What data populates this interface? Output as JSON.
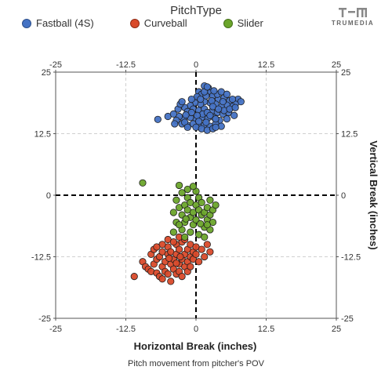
{
  "legend": {
    "title": "PitchType",
    "items": [
      {
        "label": "Fastball (4S)",
        "color": "#4472c4"
      },
      {
        "label": "Curveball",
        "color": "#d94a2a"
      },
      {
        "label": "Slider",
        "color": "#6ba52b"
      }
    ]
  },
  "brand": {
    "name": "TRUMEDIA",
    "icon": "trumedia-logo-icon"
  },
  "caption": "Pitch movement from pitcher's POV",
  "chart_data": {
    "type": "scatter",
    "xlabel": "Horizontal Break (inches)",
    "ylabel": "Vertical Break (inches)",
    "xlim": [
      -25,
      25
    ],
    "ylim": [
      -25,
      25
    ],
    "xticks": [
      "-25",
      "-12.5",
      "0",
      "12.5",
      "25"
    ],
    "yticks": [
      "25",
      "12.5",
      "0",
      "-12.5",
      "-25"
    ],
    "grid": true,
    "zero_lines": "dashed",
    "legend_placement": "top",
    "series": [
      {
        "name": "Fastball (4S)",
        "color": "#4472c4",
        "points": [
          [
            1.5,
            22.2
          ],
          [
            2.2,
            21.8
          ],
          [
            0.5,
            21.0
          ],
          [
            1.0,
            20.5
          ],
          [
            2.5,
            20.8
          ],
          [
            3.0,
            20.2
          ],
          [
            4.0,
            19.5
          ],
          [
            5.0,
            19.8
          ],
          [
            6.0,
            19.2
          ],
          [
            7.5,
            19.5
          ],
          [
            8.0,
            19.0
          ],
          [
            7.0,
            18.5
          ],
          [
            6.5,
            18.0
          ],
          [
            5.5,
            18.3
          ],
          [
            4.5,
            18.0
          ],
          [
            3.5,
            18.5
          ],
          [
            2.5,
            18.8
          ],
          [
            1.5,
            19.0
          ],
          [
            0.8,
            18.5
          ],
          [
            -0.2,
            18.8
          ],
          [
            -1.0,
            18.2
          ],
          [
            -2.0,
            17.8
          ],
          [
            -1.5,
            17.0
          ],
          [
            -0.5,
            17.5
          ],
          [
            0.5,
            17.2
          ],
          [
            1.5,
            17.5
          ],
          [
            2.8,
            17.0
          ],
          [
            3.8,
            16.8
          ],
          [
            4.8,
            16.5
          ],
          [
            5.8,
            16.8
          ],
          [
            6.8,
            16.2
          ],
          [
            5.5,
            15.5
          ],
          [
            4.2,
            15.2
          ],
          [
            3.2,
            15.8
          ],
          [
            2.0,
            15.5
          ],
          [
            1.0,
            15.8
          ],
          [
            0.0,
            15.5
          ],
          [
            -1.0,
            15.8
          ],
          [
            -2.2,
            15.5
          ],
          [
            -3.0,
            16.0
          ],
          [
            -3.5,
            15.2
          ],
          [
            -2.5,
            14.5
          ],
          [
            -1.5,
            14.2
          ],
          [
            -0.5,
            14.5
          ],
          [
            0.5,
            14.0
          ],
          [
            1.5,
            14.3
          ],
          [
            2.5,
            14.0
          ],
          [
            3.5,
            14.5
          ],
          [
            4.5,
            14.0
          ],
          [
            0.0,
            13.8
          ],
          [
            1.0,
            13.5
          ],
          [
            2.0,
            13.2
          ],
          [
            3.0,
            13.5
          ],
          [
            -3.2,
            17.5
          ],
          [
            -2.8,
            18.5
          ],
          [
            0.2,
            20.0
          ],
          [
            1.8,
            20.2
          ],
          [
            3.8,
            20.5
          ],
          [
            4.5,
            21.0
          ],
          [
            2.8,
            19.2
          ],
          [
            1.2,
            16.5
          ],
          [
            0.2,
            16.2
          ],
          [
            -0.8,
            16.8
          ],
          [
            5.0,
            17.2
          ],
          [
            6.0,
            17.5
          ],
          [
            7.0,
            17.8
          ],
          [
            3.0,
            18.0
          ],
          [
            2.0,
            16.8
          ],
          [
            -1.8,
            16.3
          ],
          [
            -6.8,
            15.4
          ],
          [
            -5.0,
            16.0
          ],
          [
            -4.0,
            16.5
          ],
          [
            -3.8,
            14.5
          ],
          [
            -2.0,
            14.8
          ],
          [
            1.8,
            14.8
          ],
          [
            3.5,
            15.5
          ],
          [
            2.5,
            16.2
          ],
          [
            4.0,
            17.5
          ],
          [
            0.8,
            19.5
          ],
          [
            -0.8,
            19.5
          ],
          [
            1.5,
            21.0
          ],
          [
            3.2,
            21.2
          ],
          [
            2.0,
            22.0
          ],
          [
            0.5,
            15.0
          ],
          [
            -1.5,
            13.8
          ],
          [
            4.8,
            19.0
          ],
          [
            5.5,
            20.5
          ],
          [
            6.5,
            19.5
          ],
          [
            -2.5,
            19.0
          ],
          [
            3.5,
            13.8
          ]
        ]
      },
      {
        "name": "Curveball",
        "color": "#d94a2a",
        "points": [
          [
            -11.0,
            -16.5
          ],
          [
            -9.5,
            -13.5
          ],
          [
            -9.0,
            -14.5
          ],
          [
            -8.5,
            -15.0
          ],
          [
            -8.0,
            -15.5
          ],
          [
            -8.0,
            -12.0
          ],
          [
            -7.5,
            -14.0
          ],
          [
            -7.5,
            -11.0
          ],
          [
            -7.0,
            -15.8
          ],
          [
            -7.0,
            -13.0
          ],
          [
            -6.5,
            -12.5
          ],
          [
            -6.5,
            -16.5
          ],
          [
            -6.0,
            -14.5
          ],
          [
            -6.0,
            -11.5
          ],
          [
            -6.0,
            -17.0
          ],
          [
            -5.5,
            -13.5
          ],
          [
            -5.5,
            -15.5
          ],
          [
            -5.0,
            -12.0
          ],
          [
            -5.0,
            -16.0
          ],
          [
            -5.0,
            -10.5
          ],
          [
            -4.5,
            -14.0
          ],
          [
            -4.5,
            -11.5
          ],
          [
            -4.5,
            -17.5
          ],
          [
            -4.0,
            -13.0
          ],
          [
            -4.0,
            -15.0
          ],
          [
            -3.5,
            -12.0
          ],
          [
            -3.5,
            -16.0
          ],
          [
            -3.5,
            -10.0
          ],
          [
            -3.0,
            -14.0
          ],
          [
            -3.0,
            -11.0
          ],
          [
            -3.0,
            -15.5
          ],
          [
            -2.5,
            -13.0
          ],
          [
            -2.5,
            -16.5
          ],
          [
            -2.5,
            -9.5
          ],
          [
            -2.0,
            -12.0
          ],
          [
            -2.0,
            -14.5
          ],
          [
            -1.5,
            -11.0
          ],
          [
            -1.5,
            -13.5
          ],
          [
            -1.5,
            -15.5
          ],
          [
            -1.0,
            -12.5
          ],
          [
            -1.0,
            -10.0
          ],
          [
            -1.0,
            -14.5
          ],
          [
            -0.5,
            -11.5
          ],
          [
            -0.5,
            -13.0
          ],
          [
            0.0,
            -12.0
          ],
          [
            0.0,
            -10.5
          ],
          [
            0.5,
            -13.5
          ],
          [
            1.0,
            -11.0
          ],
          [
            1.5,
            -12.5
          ],
          [
            2.0,
            -10.0
          ],
          [
            2.5,
            -11.5
          ],
          [
            -6.0,
            -10.0
          ],
          [
            -5.0,
            -9.0
          ],
          [
            -4.0,
            -9.5
          ],
          [
            -3.0,
            -8.5
          ],
          [
            -2.0,
            -9.0
          ],
          [
            -7.0,
            -10.5
          ],
          [
            -3.5,
            -13.8
          ],
          [
            -4.8,
            -12.8
          ],
          [
            -2.8,
            -12.5
          ]
        ]
      },
      {
        "name": "Slider",
        "color": "#6ba52b",
        "points": [
          [
            -9.5,
            2.5
          ],
          [
            -3.0,
            2.0
          ],
          [
            -2.5,
            0.5
          ],
          [
            -3.5,
            -1.0
          ],
          [
            -3.0,
            -2.5
          ],
          [
            -2.5,
            -4.0
          ],
          [
            -2.0,
            -2.0
          ],
          [
            -2.0,
            -5.5
          ],
          [
            -1.5,
            -3.0
          ],
          [
            -1.5,
            -0.5
          ],
          [
            -1.0,
            -4.5
          ],
          [
            -1.0,
            -1.5
          ],
          [
            -0.5,
            -3.5
          ],
          [
            -0.5,
            -6.0
          ],
          [
            0.0,
            -2.0
          ],
          [
            0.0,
            -5.0
          ],
          [
            0.5,
            -3.0
          ],
          [
            0.5,
            -0.5
          ],
          [
            1.0,
            -4.0
          ],
          [
            1.0,
            -1.5
          ],
          [
            1.5,
            -3.5
          ],
          [
            1.5,
            -6.5
          ],
          [
            2.0,
            -2.5
          ],
          [
            2.0,
            -5.0
          ],
          [
            2.5,
            -4.0
          ],
          [
            2.5,
            -1.0
          ],
          [
            3.0,
            -3.0
          ],
          [
            3.0,
            -5.5
          ],
          [
            -2.5,
            -7.0
          ],
          [
            -1.0,
            -7.5
          ],
          [
            0.5,
            -8.0
          ],
          [
            -2.0,
            -8.5
          ],
          [
            -3.5,
            -5.5
          ],
          [
            -4.0,
            -3.5
          ],
          [
            -4.0,
            -7.5
          ],
          [
            1.5,
            -8.5
          ],
          [
            2.5,
            -7.0
          ],
          [
            -1.5,
            1.2
          ],
          [
            0.0,
            0.8
          ],
          [
            -0.5,
            1.8
          ],
          [
            3.5,
            -2.0
          ],
          [
            2.0,
            -6.0
          ],
          [
            -3.0,
            -6.0
          ],
          [
            0.8,
            -5.8
          ],
          [
            -1.8,
            -4.8
          ]
        ]
      }
    ]
  }
}
